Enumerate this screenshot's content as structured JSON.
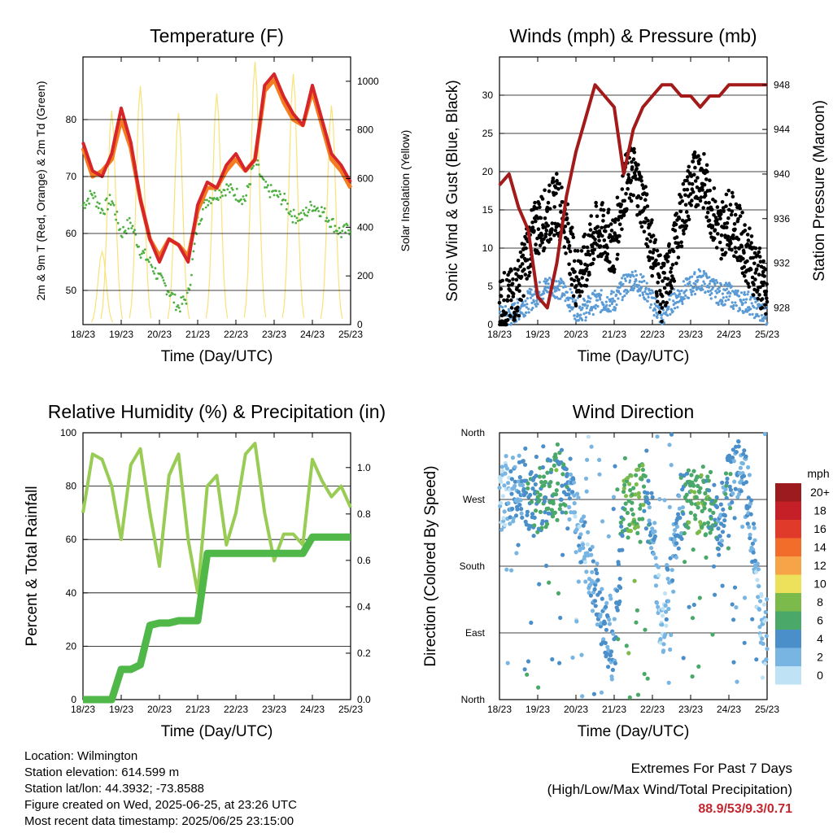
{
  "time_axis": {
    "tick_labels": [
      "18/23",
      "19/23",
      "20/23",
      "21/23",
      "22/23",
      "23/23",
      "24/23",
      "25/23"
    ],
    "label": "Time (Day/UTC)"
  },
  "colors": {
    "temp_red": "#d7262a",
    "temp_orange": "#f47c20",
    "dewpoint_green": "#4caf3f",
    "solar_yellow": "#f9e27a",
    "wind_blue": "#5b9bd5",
    "gust_black": "#000000",
    "pressure_maroon": "#a31a1a",
    "rh_lightgreen": "#99cc55",
    "precip_green": "#4fb848",
    "extremes_red": "#c4262e"
  },
  "chart_data": [
    {
      "id": "temperature",
      "type": "line",
      "title": "Temperature (F)",
      "xlabel": "Time (Day/UTC)",
      "ylabel": "2m & 9m T (Red, Orange) & 2m Td (Green)",
      "ylabel_right": "Solar Insolation (Yellow)",
      "xlim": [
        0,
        7
      ],
      "ylim": [
        44,
        91
      ],
      "yticks": [
        50,
        60,
        70,
        80
      ],
      "ylim_right": [
        0,
        1100
      ],
      "yticks_right": [
        0,
        200,
        400,
        600,
        800,
        1000
      ],
      "x": [
        0,
        0.25,
        0.5,
        0.75,
        1,
        1.25,
        1.5,
        1.75,
        2,
        2.25,
        2.5,
        2.75,
        3,
        3.25,
        3.5,
        3.75,
        4,
        4.25,
        4.5,
        4.75,
        5,
        5.25,
        5.5,
        5.75,
        6,
        6.25,
        6.5,
        6.75,
        7
      ],
      "series": [
        {
          "key": "t2m",
          "values": [
            76,
            71,
            70,
            74,
            82,
            76,
            66,
            59,
            55,
            59,
            58,
            55,
            65,
            69,
            68,
            72,
            74,
            71,
            73,
            86,
            88,
            84,
            81,
            79,
            86,
            80,
            74,
            72,
            69
          ]
        },
        {
          "key": "t9m",
          "values": [
            75,
            70,
            71,
            73,
            80,
            75,
            66,
            59,
            56,
            59,
            58,
            56,
            64,
            68,
            68,
            71,
            73,
            71,
            73,
            85,
            87,
            83,
            80,
            79,
            85,
            79,
            73,
            71,
            68
          ]
        },
        {
          "key": "td2m",
          "values": [
            65,
            67,
            64,
            66,
            60,
            62,
            57,
            55,
            52,
            50,
            47,
            49,
            62,
            66,
            67,
            68,
            67,
            66,
            73,
            68,
            67,
            66,
            63,
            63,
            65,
            64,
            62,
            60,
            61
          ]
        },
        {
          "key": "solar",
          "right_axis": true,
          "values": [
            0,
            0,
            300,
            880,
            0,
            0,
            980,
            0,
            0,
            0,
            870,
            0,
            0,
            0,
            950,
            0,
            0,
            0,
            1080,
            0,
            0,
            0,
            1030,
            0,
            0,
            0,
            900,
            0,
            0
          ]
        }
      ]
    },
    {
      "id": "winds",
      "type": "scatter",
      "title": "Winds (mph) & Pressure (mb)",
      "xlabel": "Time (Day/UTC)",
      "ylabel": "Sonic Wind & Gust (Blue, Black)",
      "ylabel_right": "Station Pressure (Maroon)",
      "xlim": [
        0,
        7
      ],
      "ylim": [
        0,
        35
      ],
      "yticks": [
        0,
        5,
        10,
        15,
        20,
        25,
        30
      ],
      "ylim_right": [
        926.5,
        950.5
      ],
      "yticks_right": [
        928,
        932,
        936,
        940,
        944,
        948
      ],
      "x": [
        0,
        0.25,
        0.5,
        0.75,
        1,
        1.25,
        1.5,
        1.75,
        2,
        2.25,
        2.5,
        2.75,
        3,
        3.25,
        3.5,
        3.75,
        4,
        4.25,
        4.5,
        4.75,
        5,
        5.25,
        5.5,
        5.75,
        6,
        6.25,
        6.5,
        6.75,
        7
      ],
      "series": [
        {
          "key": "gust",
          "values": [
            3,
            3,
            5,
            10,
            13,
            14,
            16,
            13,
            6,
            8,
            12,
            12,
            10,
            18,
            20,
            16,
            10,
            4,
            8,
            14,
            18,
            20,
            16,
            12,
            14,
            12,
            9,
            7,
            3
          ]
        },
        {
          "key": "wind",
          "values": [
            1,
            1,
            2,
            3,
            4,
            5,
            5,
            4,
            2,
            2,
            3,
            3,
            3,
            5,
            6,
            5,
            3,
            1,
            3,
            4,
            5,
            6,
            5,
            4,
            4,
            3,
            3,
            2,
            1
          ]
        },
        {
          "key": "pressure",
          "right_axis": true,
          "values": [
            939,
            940,
            937,
            935,
            929,
            928,
            932,
            938,
            942,
            945,
            948,
            947,
            946,
            940,
            944,
            946,
            947,
            948,
            948,
            947,
            947,
            946,
            947,
            947,
            948,
            948,
            948,
            948,
            948
          ]
        }
      ]
    },
    {
      "id": "humidity",
      "type": "line",
      "title": "Relative Humidity (%) & Precipitation (in)",
      "xlabel": "Time (Day/UTC)",
      "ylabel": "Percent & Total Rainfall",
      "xlim": [
        0,
        7
      ],
      "ylim": [
        0,
        100
      ],
      "yticks": [
        0,
        20,
        40,
        60,
        80,
        100
      ],
      "ylim_right": [
        0,
        1.15
      ],
      "yticks_right": [
        0.0,
        0.2,
        0.4,
        0.6,
        0.8,
        1.0
      ],
      "x": [
        0,
        0.25,
        0.5,
        0.75,
        1,
        1.25,
        1.5,
        1.75,
        2,
        2.25,
        2.5,
        2.75,
        3,
        3.25,
        3.5,
        3.75,
        4,
        4.25,
        4.5,
        4.75,
        5,
        5.25,
        5.5,
        5.75,
        6,
        6.25,
        6.5,
        6.75,
        7
      ],
      "series": [
        {
          "key": "rh",
          "values": [
            70,
            92,
            90,
            80,
            60,
            88,
            94,
            70,
            50,
            84,
            92,
            60,
            40,
            80,
            84,
            58,
            70,
            92,
            96,
            70,
            52,
            62,
            62,
            58,
            90,
            82,
            76,
            80,
            72
          ]
        },
        {
          "key": "precip",
          "right_axis": true,
          "values": [
            0,
            0,
            0,
            0,
            0.13,
            0.13,
            0.15,
            0.32,
            0.33,
            0.33,
            0.34,
            0.34,
            0.34,
            0.63,
            0.63,
            0.63,
            0.63,
            0.63,
            0.63,
            0.63,
            0.63,
            0.63,
            0.63,
            0.63,
            0.7,
            0.7,
            0.7,
            0.7,
            0.7
          ]
        }
      ]
    },
    {
      "id": "direction",
      "type": "scatter",
      "title": "Wind Direction",
      "xlabel": "Time (Day/UTC)",
      "ylabel": "Direction (Colored By Speed)",
      "xlim": [
        0,
        7
      ],
      "ylim": [
        0,
        360
      ],
      "ytick_labels": [
        "North",
        "East",
        "South",
        "West",
        "North"
      ],
      "ytick_values": [
        0,
        90,
        180,
        270,
        360
      ],
      "legend_title": "mph",
      "legend_labels": [
        "20+",
        "18",
        "16",
        "14",
        "12",
        "10",
        "8",
        "6",
        "4",
        "2",
        "0"
      ],
      "legend_colors": [
        "#9b1b1e",
        "#c52027",
        "#e03a2a",
        "#f26c2a",
        "#f7a347",
        "#ede05a",
        "#7cbb4b",
        "#4aa868",
        "#4a8fc9",
        "#79b5e2",
        "#bfe3f5"
      ],
      "x": [
        0,
        0.25,
        0.5,
        0.75,
        1,
        1.25,
        1.5,
        1.75,
        2,
        2.25,
        2.5,
        2.75,
        3,
        3.25,
        3.5,
        3.75,
        4,
        4.25,
        4.5,
        4.75,
        5,
        5.25,
        5.5,
        5.75,
        6,
        6.25,
        6.5,
        6.75,
        7
      ],
      "values": [
        270,
        280,
        290,
        270,
        260,
        280,
        300,
        290,
        240,
        200,
        150,
        100,
        60,
        250,
        270,
        280,
        230,
        80,
        200,
        260,
        280,
        260,
        270,
        230,
        300,
        310,
        280,
        150,
        60
      ],
      "speed": [
        1,
        2,
        3,
        4,
        5,
        5,
        6,
        4,
        2,
        2,
        3,
        3,
        3,
        6,
        7,
        6,
        3,
        1,
        3,
        4,
        6,
        7,
        6,
        4,
        4,
        3,
        3,
        2,
        1
      ]
    }
  ],
  "footer": {
    "location": "Location: Wilmington",
    "elevation": "Station elevation: 614.599 m",
    "latlon": "Station lat/lon: 44.3932; -73.8588",
    "created": "Figure created on Wed, 2025-06-25, at 23:26 UTC",
    "recent": "Most recent data timestamp: 2025/06/25 23:15:00"
  },
  "extremes": {
    "line1": "Extremes For Past 7 Days",
    "line2": "(High/Low/Max Wind/Total Precipitation)",
    "values": "88.9/53/9.3/0.71"
  }
}
